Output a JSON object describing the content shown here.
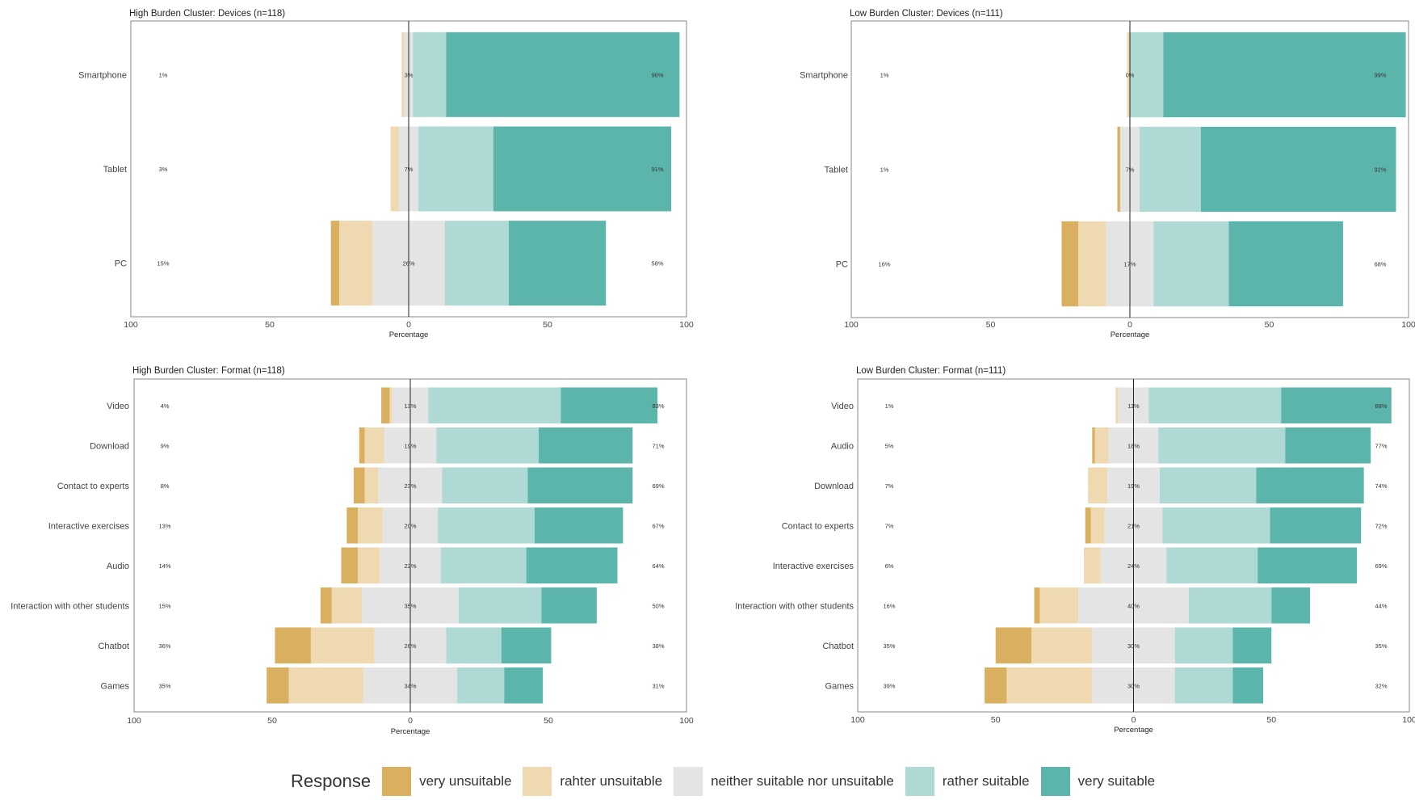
{
  "colors": {
    "very unsuitable": "#d8b060",
    "rahter unsuitable": "#eed9b0",
    "neither suitable nor unsuitable": "#e4e4e4",
    "rather suitable": "#aed9d4",
    "very suitable": "#5cb5ab"
  },
  "legend": {
    "title": "Response",
    "items": [
      "very unsuitable",
      "rahter unsuitable",
      "neither suitable nor unsuitable",
      "rather suitable",
      "very suitable"
    ]
  },
  "chart_data": [
    {
      "type": "bar",
      "title": "High Burden Cluster: Devices (n=118)",
      "xlabel": "Percentage",
      "xlim": [
        -100,
        100
      ],
      "xticks": [
        "100",
        "50",
        "0",
        "50",
        "100"
      ],
      "categories": [
        "Smartphone",
        "Tablet",
        "PC"
      ],
      "series": [
        {
          "name": "very unsuitable",
          "values": [
            0,
            0,
            3
          ]
        },
        {
          "name": "rahter unsuitable",
          "values": [
            1,
            3,
            12
          ]
        },
        {
          "name": "neither suitable nor unsuitable",
          "values": [
            3,
            7,
            26
          ]
        },
        {
          "name": "rather suitable",
          "values": [
            12,
            27,
            23
          ]
        },
        {
          "name": "very suitable",
          "values": [
            84,
            64,
            35
          ]
        }
      ],
      "low_labels": [
        "1%",
        "3%",
        "15%"
      ],
      "mid_labels": [
        "3%",
        "7%",
        "26%"
      ],
      "high_labels": [
        "96%",
        "91%",
        "58%"
      ]
    },
    {
      "type": "bar",
      "title": "Low Burden Cluster: Devices (n=111)",
      "xlabel": "Percentage",
      "xlim": [
        -100,
        100
      ],
      "xticks": [
        "100",
        "50",
        "0",
        "50",
        "100"
      ],
      "categories": [
        "Smartphone",
        "Tablet",
        "PC"
      ],
      "series": [
        {
          "name": "very unsuitable",
          "values": [
            0,
            1,
            6
          ]
        },
        {
          "name": "rahter unsuitable",
          "values": [
            1,
            0,
            10
          ]
        },
        {
          "name": "neither suitable nor unsuitable",
          "values": [
            0,
            7,
            17
          ]
        },
        {
          "name": "rather suitable",
          "values": [
            12,
            22,
            27
          ]
        },
        {
          "name": "very suitable",
          "values": [
            87,
            70,
            41
          ]
        }
      ],
      "low_labels": [
        "1%",
        "1%",
        "16%"
      ],
      "mid_labels": [
        "0%",
        "7%",
        "17%"
      ],
      "high_labels": [
        "99%",
        "92%",
        "68%"
      ]
    },
    {
      "type": "bar",
      "title": "High Burden Cluster: Format (n=118)",
      "xlabel": "Percentage",
      "xlim": [
        -100,
        100
      ],
      "xticks": [
        "100",
        "50",
        "0",
        "50",
        "100"
      ],
      "categories": [
        "Video",
        "Download",
        "Contact to experts",
        "Interactive exercises",
        "Audio",
        "Interaction with other students",
        "Chatbot",
        "Games"
      ],
      "series": [
        {
          "name": "very unsuitable",
          "values": [
            3,
            2,
            4,
            4,
            6,
            4,
            13,
            8
          ]
        },
        {
          "name": "rahter unsuitable",
          "values": [
            1,
            7,
            5,
            9,
            8,
            11,
            23,
            27
          ]
        },
        {
          "name": "neither suitable nor unsuitable",
          "values": [
            13,
            19,
            23,
            20,
            22,
            35,
            26,
            34
          ]
        },
        {
          "name": "rather suitable",
          "values": [
            48,
            37,
            31,
            35,
            31,
            30,
            20,
            17
          ]
        },
        {
          "name": "very suitable",
          "values": [
            35,
            34,
            38,
            32,
            33,
            20,
            18,
            14
          ]
        }
      ],
      "low_labels": [
        "4%",
        "9%",
        "8%",
        "13%",
        "14%",
        "15%",
        "36%",
        "35%"
      ],
      "mid_labels": [
        "13%",
        "19%",
        "23%",
        "20%",
        "22%",
        "35%",
        "26%",
        "34%"
      ],
      "high_labels": [
        "83%",
        "71%",
        "69%",
        "67%",
        "64%",
        "50%",
        "38%",
        "31%"
      ]
    },
    {
      "type": "bar",
      "title": "Low Burden Cluster: Format (n=111)",
      "xlabel": "Percentage",
      "xlim": [
        -100,
        100
      ],
      "xticks": [
        "100",
        "50",
        "0",
        "50",
        "100"
      ],
      "categories": [
        "Video",
        "Audio",
        "Download",
        "Contact to experts",
        "Interactive exercises",
        "Interaction with other students",
        "Chatbot",
        "Games"
      ],
      "series": [
        {
          "name": "very unsuitable",
          "values": [
            0,
            1,
            0,
            2,
            0,
            2,
            13,
            8
          ]
        },
        {
          "name": "rahter unsuitable",
          "values": [
            1,
            5,
            7,
            5,
            6,
            14,
            22,
            31
          ]
        },
        {
          "name": "neither suitable nor unsuitable",
          "values": [
            11,
            18,
            19,
            21,
            24,
            40,
            30,
            30
          ]
        },
        {
          "name": "rather suitable",
          "values": [
            48,
            46,
            35,
            39,
            33,
            30,
            21,
            21
          ]
        },
        {
          "name": "very suitable",
          "values": [
            40,
            31,
            39,
            33,
            36,
            14,
            14,
            11
          ]
        }
      ],
      "low_labels": [
        "1%",
        "5%",
        "7%",
        "7%",
        "6%",
        "16%",
        "35%",
        "39%"
      ],
      "mid_labels": [
        "11%",
        "18%",
        "19%",
        "21%",
        "24%",
        "40%",
        "30%",
        "30%"
      ],
      "high_labels": [
        "88%",
        "77%",
        "74%",
        "72%",
        "69%",
        "44%",
        "35%",
        "32%"
      ]
    }
  ]
}
